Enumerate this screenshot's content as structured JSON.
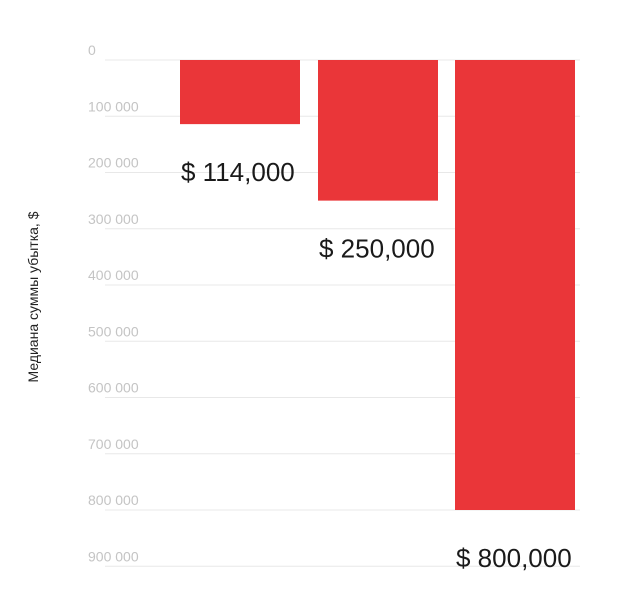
{
  "chart_data": {
    "type": "bar",
    "orientation": "downward",
    "categories": [
      "",
      "",
      ""
    ],
    "values": [
      114000,
      250000,
      800000
    ],
    "data_labels": [
      "$ 114,000",
      "$ 250,000",
      "$ 800,000"
    ],
    "ylabel": "Медиана суммы убытка, $",
    "ylim": [
      0,
      900000
    ],
    "y_ticks": [
      0,
      100000,
      200000,
      300000,
      400000,
      500000,
      600000,
      700000,
      800000,
      900000
    ],
    "y_tick_labels": [
      "0",
      "100 000",
      "200 000",
      "300 000",
      "400 000",
      "500 000",
      "600 000",
      "700 000",
      "800 000",
      "900 000"
    ],
    "grid": true,
    "legend": "none",
    "colors": {
      "bar": "#ea3639",
      "grid": "#e8e8e8",
      "tick_text": "#c4c4c4",
      "label_text": "#1a1a1a"
    }
  }
}
